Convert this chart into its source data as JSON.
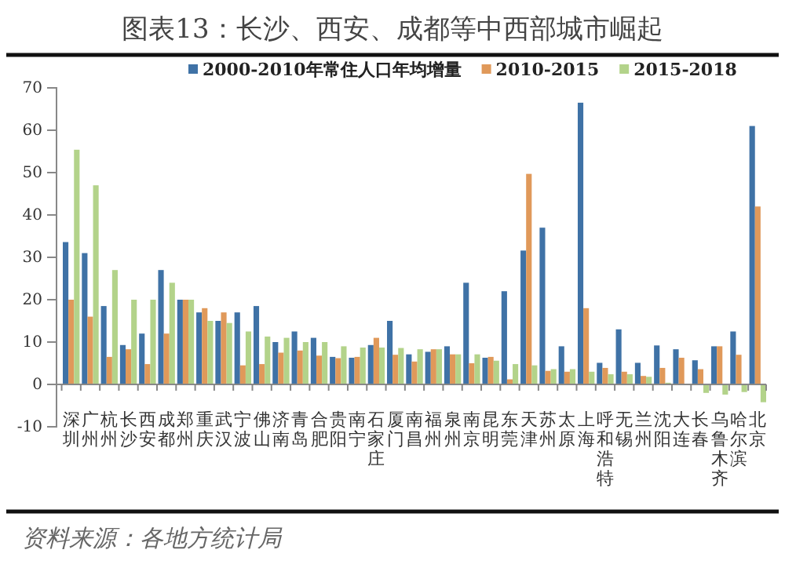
{
  "chart_data": {
    "type": "bar",
    "title": "图表13：长沙、西安、成都等中西部城市崛起",
    "categories": [
      "深圳",
      "广州",
      "杭州",
      "长沙",
      "西安",
      "成都",
      "郑州",
      "重庆",
      "武汉",
      "宁波",
      "佛山",
      "济南",
      "青岛",
      "合肥",
      "贵阳",
      "南宁",
      "石家庄",
      "厦门",
      "南昌",
      "福州",
      "泉州",
      "南京",
      "昆明",
      "东莞",
      "天津",
      "苏州",
      "太原",
      "上海",
      "呼和浩特",
      "无锡",
      "兰州",
      "沈阳",
      "大连",
      "长春",
      "乌鲁木齐",
      "哈尔滨",
      "北京"
    ],
    "series": [
      {
        "name": "2000-2010年常住人口年均增量",
        "color": "#3f72a6",
        "values": [
          33.6,
          31,
          18.5,
          9.3,
          12,
          27,
          20,
          17,
          15,
          17,
          18.5,
          10,
          12.5,
          11,
          6.5,
          6.3,
          9.3,
          15,
          7.1,
          7.7,
          9,
          24,
          6.3,
          22,
          31.6,
          37,
          9,
          66.5,
          5.1,
          13,
          5.1,
          9.2,
          8.3,
          5.7,
          9,
          12.5,
          61
        ]
      },
      {
        "name": "2010-2015",
        "color": "#e0995a",
        "values": [
          20,
          16,
          6.5,
          8.3,
          4.8,
          12,
          20,
          18,
          17,
          4.5,
          4.8,
          7.5,
          8,
          6.8,
          6.2,
          6.5,
          11,
          7,
          5.4,
          8.3,
          7.1,
          5,
          6.5,
          1.2,
          49.7,
          3.2,
          3,
          18,
          3.9,
          3,
          2,
          3.9,
          6.3,
          3.6,
          9,
          7,
          42
        ]
      },
      {
        "name": "2015-2018",
        "color": "#b3d38a",
        "values": [
          55.4,
          47,
          27,
          20,
          20,
          24,
          20,
          15,
          14.5,
          12.5,
          11.3,
          11,
          10,
          10,
          9,
          8.7,
          8.7,
          8.6,
          8.3,
          8.3,
          7.1,
          7.1,
          5.6,
          4.8,
          4.5,
          3.6,
          3.6,
          3,
          2.4,
          2.4,
          1.8,
          0.4,
          null,
          -2,
          -2.4,
          -1.8,
          -4.2
        ]
      }
    ],
    "ylim": [
      -10,
      70
    ],
    "yticks": [
      -10,
      0,
      10,
      20,
      30,
      40,
      50,
      60,
      70
    ],
    "grid": false,
    "legend": "top",
    "annotations": [
      "资料来源：各地方统计局"
    ]
  }
}
